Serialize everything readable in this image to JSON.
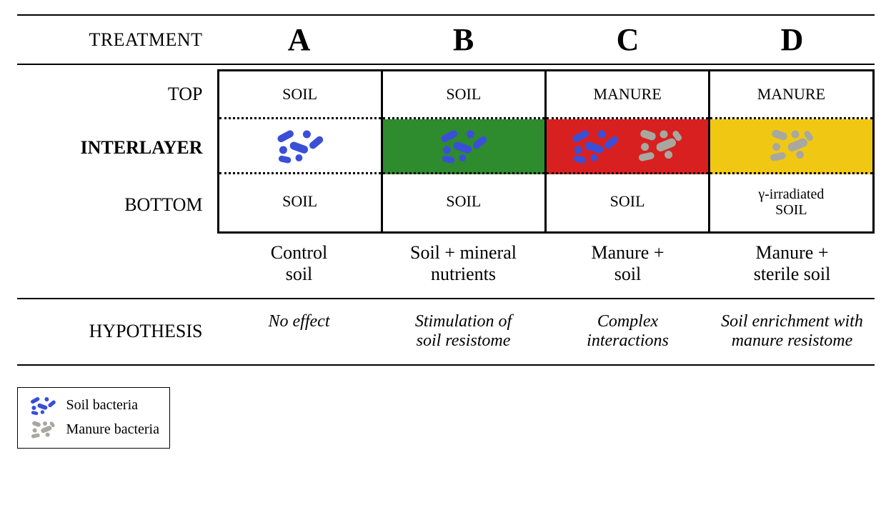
{
  "colors": {
    "rule": "#000000",
    "bg": "#ffffff",
    "interlayer_A": "#ffffff",
    "interlayer_B": "#2e8b2e",
    "interlayer_C": "#d92020",
    "interlayer_D": "#f0c814",
    "soil_bacteria": "#3a4fd8",
    "manure_bacteria": "#a8a8a0",
    "cell_border": "#000000"
  },
  "header": {
    "treatment_label": "TREATMENT",
    "treatments": [
      "A",
      "B",
      "C",
      "D"
    ]
  },
  "row_labels": {
    "top": "TOP",
    "interlayer": "INTERLAYER",
    "bottom": "BOTTOM",
    "hypothesis": "HYPOTHESIS"
  },
  "treatments": [
    {
      "id": "A",
      "top": "SOIL",
      "bottom": "SOIL",
      "interlayer_bg": "#ffffff",
      "bacteria": [
        "soil"
      ],
      "description": "Control\nsoil",
      "hypothesis": "No effect"
    },
    {
      "id": "B",
      "top": "SOIL",
      "bottom": "SOIL",
      "interlayer_bg": "#2e8b2e",
      "bacteria": [
        "soil"
      ],
      "description": "Soil + mineral\nnutrients",
      "hypothesis": "Stimulation of\nsoil resistome"
    },
    {
      "id": "C",
      "top": "MANURE",
      "bottom": "SOIL",
      "interlayer_bg": "#d92020",
      "bacteria": [
        "soil",
        "manure"
      ],
      "description": "Manure +\nsoil",
      "hypothesis": "Complex\ninteractions"
    },
    {
      "id": "D",
      "top": "MANURE",
      "bottom": "γ-irradiated\nSOIL",
      "interlayer_bg": "#f0c814",
      "bacteria": [
        "manure"
      ],
      "description": "Manure +\nsterile soil",
      "hypothesis": "Soil enrichment with\nmanure resistome"
    }
  ],
  "legend": {
    "soil": "Soil bacteria",
    "manure": "Manure bacteria"
  }
}
